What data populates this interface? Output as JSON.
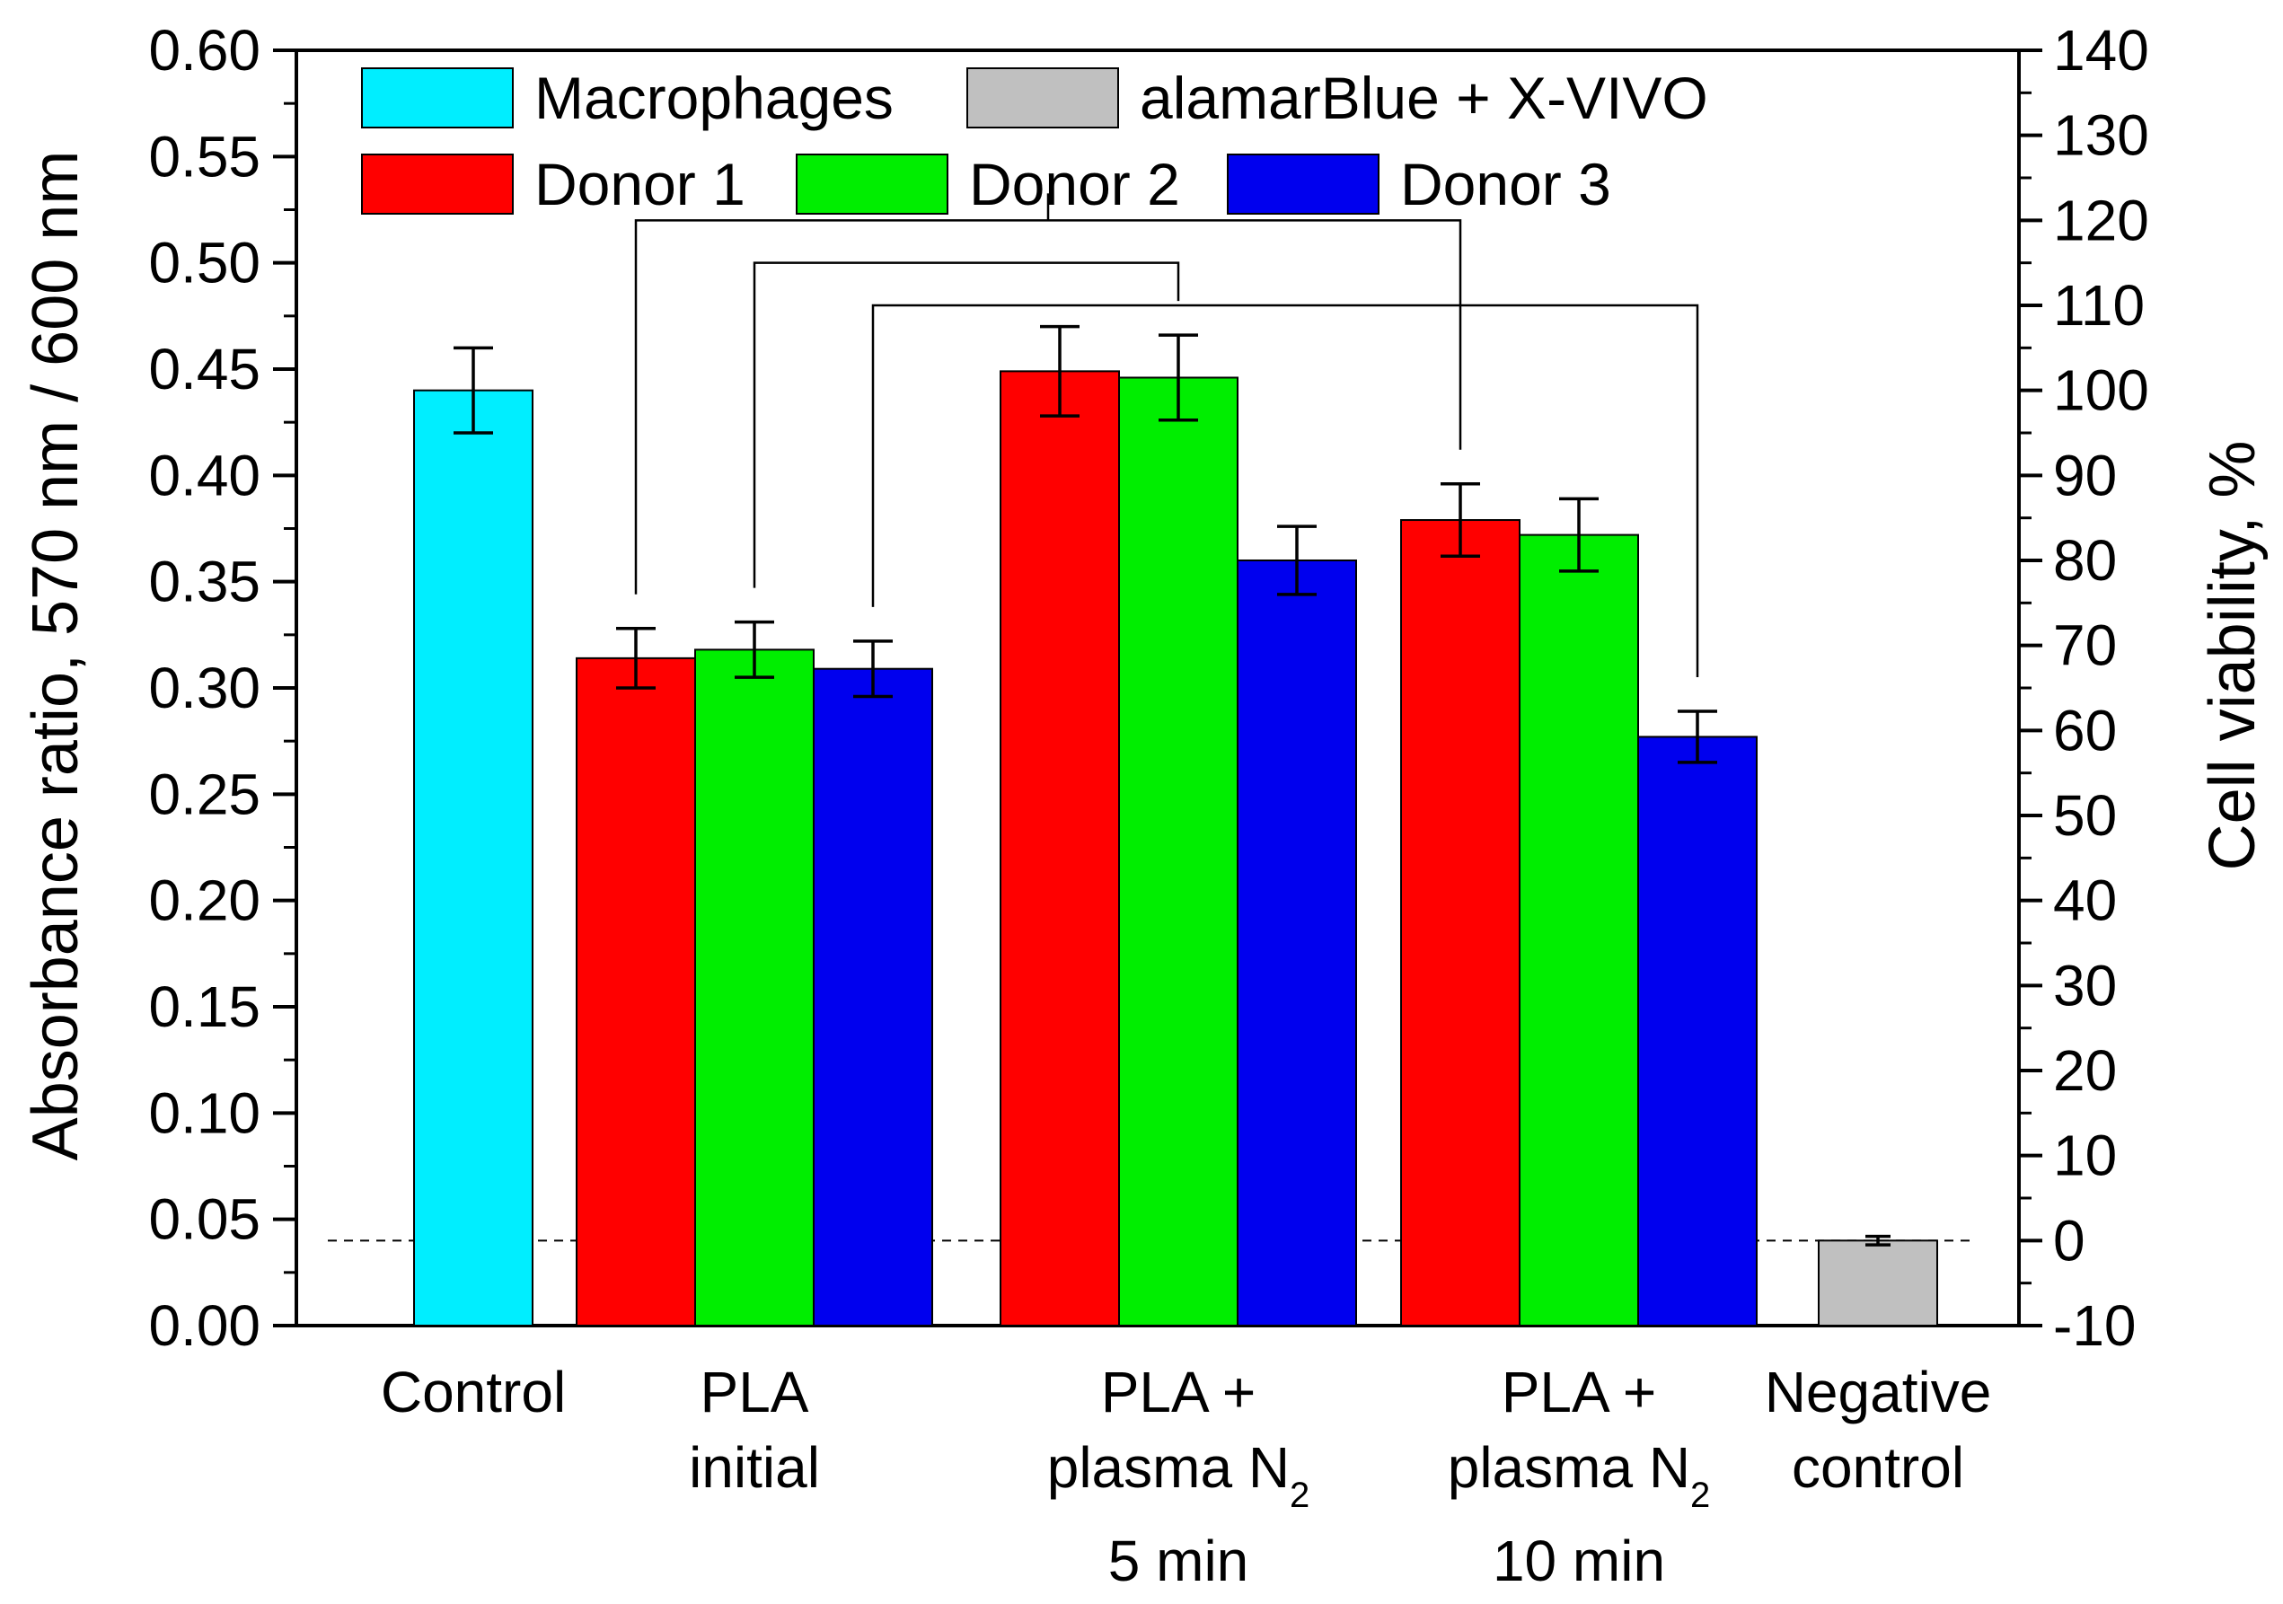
{
  "chart_data": {
    "type": "bar",
    "ylabel": "Absorbance ratio, 570 nm / 600 nm",
    "y2label": "Cell viability, %",
    "ylim": [
      0,
      0.6
    ],
    "y2lim": [
      -10,
      140
    ],
    "yticks": [
      "0.00",
      "0.05",
      "0.10",
      "0.15",
      "0.20",
      "0.25",
      "0.30",
      "0.35",
      "0.40",
      "0.45",
      "0.50",
      "0.55",
      "0.60"
    ],
    "y2ticks": [
      "-10",
      "0",
      "10",
      "20",
      "30",
      "40",
      "50",
      "60",
      "70",
      "80",
      "90",
      "100",
      "110",
      "120",
      "130",
      "140"
    ],
    "baseline_absorbance": 0.04,
    "categories": [
      {
        "id": "control",
        "lines": [
          "Control"
        ]
      },
      {
        "id": "pla-initial",
        "lines": [
          "PLA",
          "initial"
        ]
      },
      {
        "id": "pla-plasma-5",
        "lines": [
          "PLA +",
          "plasma N",
          "5 min"
        ],
        "subscript": "2"
      },
      {
        "id": "pla-plasma-10",
        "lines": [
          "PLA +",
          "plasma N",
          "10 min"
        ],
        "subscript": "2"
      },
      {
        "id": "negative-control",
        "lines": [
          "Negative",
          "control"
        ]
      }
    ],
    "series": [
      {
        "name": "Macrophages",
        "color": "#00eeff",
        "values": [
          0.44,
          null,
          null,
          null,
          null
        ],
        "errors": [
          0.02,
          null,
          null,
          null,
          null
        ]
      },
      {
        "name": "alamarBlue + X-VIVO",
        "color": "#c0c0c0",
        "values": [
          null,
          null,
          null,
          null,
          0.04
        ],
        "errors": [
          null,
          null,
          null,
          null,
          0.002
        ]
      },
      {
        "name": "Donor 1",
        "color": "#ff0000",
        "values": [
          null,
          0.314,
          0.449,
          0.379,
          null
        ],
        "errors": [
          null,
          0.014,
          0.021,
          0.017,
          null
        ]
      },
      {
        "name": "Donor 2",
        "color": "#00ee00",
        "values": [
          null,
          0.318,
          0.446,
          0.372,
          null
        ],
        "errors": [
          null,
          0.013,
          0.02,
          0.017,
          null
        ]
      },
      {
        "name": "Donor 3",
        "color": "#0000ee",
        "values": [
          null,
          0.309,
          0.36,
          0.277,
          null
        ],
        "errors": [
          null,
          0.013,
          0.016,
          0.012,
          null
        ]
      }
    ],
    "legend": {
      "placement": "top-left",
      "rows": [
        [
          "Macrophages",
          "alamarBlue + X-VIVO"
        ],
        [
          "Donor 1",
          "Donor 2",
          "Donor 3"
        ]
      ]
    },
    "significance_brackets": [
      {
        "from_category": "pla-initial",
        "from_series": "Donor 1",
        "to_category": "pla-plasma-10",
        "to_series": "Donor 1",
        "level": 0.52
      },
      {
        "from_category": "pla-initial",
        "from_series": "Donor 2",
        "to_category": "pla-plasma-5",
        "to_series": "Donor 2",
        "level": 0.5
      },
      {
        "from_category": "pla-initial",
        "from_series": "Donor 3",
        "to_category": "pla-plasma-10",
        "to_series": "Donor 3",
        "level": 0.48
      }
    ]
  }
}
